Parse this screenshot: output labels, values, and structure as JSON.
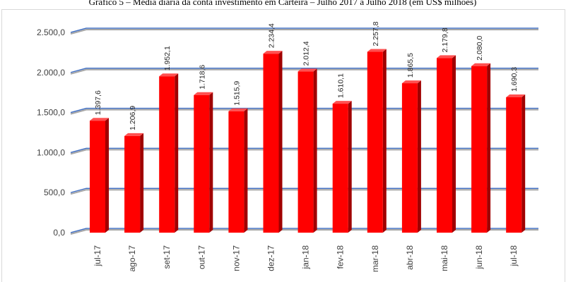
{
  "chart_data": {
    "type": "bar",
    "title": "Gráfico 5 – Média diária da conta investimento em Carteira – Julho 2017 a Julho 2018 (em US$ milhões)",
    "categories": [
      "jul-17",
      "ago-17",
      "set-17",
      "out-17",
      "nov-17",
      "dez-17",
      "jan-18",
      "fev-18",
      "mar-18",
      "abr-18",
      "mai-18",
      "jun-18",
      "jul-18"
    ],
    "values": [
      1397.6,
      1206.9,
      1952.1,
      1718.6,
      1515.9,
      2234.4,
      2012.4,
      1610.1,
      2257.8,
      1865.5,
      2179.8,
      2080.0,
      1690.3
    ],
    "value_labels": [
      "1.397,6",
      "1.206,9",
      "1.952,1",
      "1.718,6",
      "1.515,9",
      "2.234,4",
      "2.012,4",
      "1.610,1",
      "2.257,8",
      "1.865,5",
      "2.179,8",
      "2.080,0",
      "1.690,3"
    ],
    "color": "#ff0000",
    "ylim": [
      0,
      2500
    ],
    "yticks": [
      {
        "value": 0,
        "label": "0,0"
      },
      {
        "value": 500,
        "label": "500,0"
      },
      {
        "value": 1000,
        "label": "1.000,0"
      },
      {
        "value": 1500,
        "label": "1.500,0"
      },
      {
        "value": 2000,
        "label": "2.000,0"
      },
      {
        "value": 2500,
        "label": "2.500,0"
      }
    ],
    "grid": true
  }
}
